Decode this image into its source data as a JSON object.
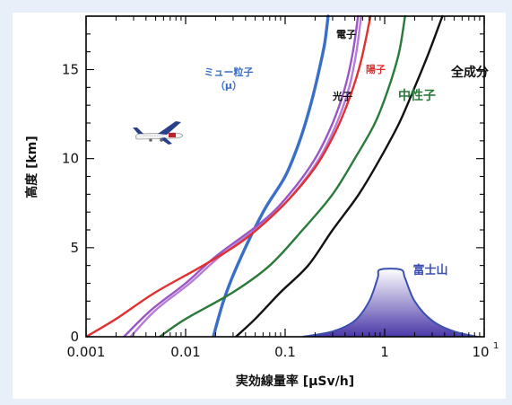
{
  "chart_data": {
    "type": "line",
    "xlabel": "実効線量率 [µSv/h]",
    "ylabel": "高度 [km]",
    "x_scale": "log",
    "xlim": [
      0.001,
      10
    ],
    "ylim": [
      0,
      18
    ],
    "x_ticks": [
      {
        "value": 0.001,
        "label": "0.001"
      },
      {
        "value": 0.01,
        "label": "0.01"
      },
      {
        "value": 0.1,
        "label": "0.1"
      },
      {
        "value": 1,
        "label": "1"
      }
    ],
    "x_last_tick": {
      "value": 10,
      "base": "10",
      "exp": "1"
    },
    "y_ticks": [
      {
        "value": 0,
        "label": "0"
      },
      {
        "value": 5,
        "label": "5"
      },
      {
        "value": 10,
        "label": "10"
      },
      {
        "value": 15,
        "label": "15"
      }
    ],
    "grid": false,
    "legend": "none",
    "series": [
      {
        "name": "ミュー粒子",
        "label_lines": [
          "ミュー粒子",
          "（µ）"
        ],
        "color": "#3a6fc8",
        "points": [
          [
            0.019,
            0
          ],
          [
            0.024,
            2
          ],
          [
            0.033,
            4
          ],
          [
            0.06,
            7
          ],
          [
            0.1,
            9
          ],
          [
            0.14,
            11
          ],
          [
            0.18,
            13
          ],
          [
            0.22,
            15
          ],
          [
            0.25,
            16.5
          ],
          [
            0.27,
            18
          ]
        ]
      },
      {
        "name": "光子",
        "color": "#9a56c4",
        "points": [
          [
            0.0024,
            0
          ],
          [
            0.0045,
            1.5
          ],
          [
            0.01,
            3
          ],
          [
            0.02,
            4.5
          ],
          [
            0.06,
            6.5
          ],
          [
            0.11,
            8
          ],
          [
            0.2,
            10
          ],
          [
            0.3,
            12
          ],
          [
            0.4,
            14
          ],
          [
            0.48,
            16
          ],
          [
            0.54,
            18
          ]
        ]
      },
      {
        "name": "電子",
        "color": "#b77cd6",
        "points": [
          [
            0.0028,
            0
          ],
          [
            0.005,
            1.5
          ],
          [
            0.011,
            3
          ],
          [
            0.022,
            4.5
          ],
          [
            0.065,
            6.5
          ],
          [
            0.12,
            8
          ],
          [
            0.22,
            10
          ],
          [
            0.33,
            12
          ],
          [
            0.44,
            14
          ],
          [
            0.52,
            16
          ],
          [
            0.58,
            18
          ]
        ]
      },
      {
        "name": "陽子",
        "color": "#e03030",
        "points": [
          [
            0.001,
            0
          ],
          [
            0.002,
            1
          ],
          [
            0.005,
            2.5
          ],
          [
            0.015,
            4
          ],
          [
            0.04,
            5.5
          ],
          [
            0.1,
            7.5
          ],
          [
            0.2,
            9.5
          ],
          [
            0.32,
            11.5
          ],
          [
            0.45,
            13.5
          ],
          [
            0.58,
            15.5
          ],
          [
            0.72,
            18
          ]
        ]
      },
      {
        "name": "中性子",
        "color": "#2a7a3a",
        "points": [
          [
            0.0055,
            0
          ],
          [
            0.01,
            1
          ],
          [
            0.03,
            2.5
          ],
          [
            0.07,
            4
          ],
          [
            0.15,
            6
          ],
          [
            0.3,
            8
          ],
          [
            0.5,
            10
          ],
          [
            0.8,
            12
          ],
          [
            1.1,
            14
          ],
          [
            1.4,
            16
          ],
          [
            1.6,
            18
          ]
        ]
      },
      {
        "name": "全成分",
        "color": "#111111",
        "points": [
          [
            0.032,
            0
          ],
          [
            0.05,
            1
          ],
          [
            0.09,
            2.5
          ],
          [
            0.17,
            4
          ],
          [
            0.3,
            6
          ],
          [
            0.55,
            8
          ],
          [
            0.9,
            10
          ],
          [
            1.4,
            12
          ],
          [
            2.0,
            14
          ],
          [
            2.8,
            16
          ],
          [
            3.8,
            18
          ]
        ]
      }
    ],
    "annotations": [
      {
        "text": "富士山",
        "color": "#3a4fb0"
      }
    ],
    "mountain": {
      "color": "#3a4fb0",
      "points": [
        [
          0.15,
          0
        ],
        [
          0.3,
          0.3
        ],
        [
          0.5,
          0.9
        ],
        [
          0.7,
          2.0
        ],
        [
          0.85,
          3.3
        ],
        [
          0.9,
          3.77
        ],
        [
          1.45,
          3.77
        ],
        [
          1.6,
          3.3
        ],
        [
          2.0,
          2.0
        ],
        [
          3.0,
          0.9
        ],
        [
          5.0,
          0.3
        ],
        [
          8.5,
          0
        ]
      ]
    },
    "airplane_icon": "airplane-icon"
  }
}
